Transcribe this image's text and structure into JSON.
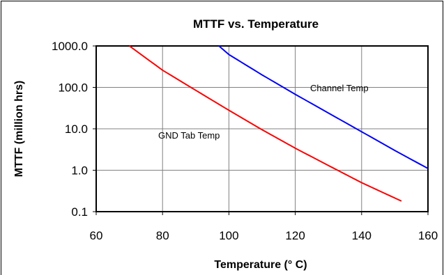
{
  "chart_data": {
    "type": "line",
    "title": "MTTF vs. Temperature",
    "xlabel": "Temperature (° C)",
    "ylabel": "MTTF (million hrs)",
    "xlim": [
      60,
      160
    ],
    "ylim": [
      0.1,
      1000
    ],
    "y_scale": "log",
    "grid": true,
    "legend": "none",
    "x_ticks": [
      "60",
      "80",
      "100",
      "120",
      "140",
      "160"
    ],
    "y_ticks": [
      "0.1",
      "1.0",
      "10.0",
      "100.0",
      "1000.0"
    ],
    "series": [
      {
        "name": "GND Tab Temp",
        "color": "#ff0000",
        "x": [
          70,
          80,
          90,
          100,
          110,
          120,
          130,
          140,
          152
        ],
        "y": [
          1000,
          260,
          85,
          28,
          9.5,
          3.4,
          1.3,
          0.5,
          0.18
        ]
      },
      {
        "name": "Channel Temp",
        "color": "#0000ff",
        "x": [
          97,
          100,
          110,
          120,
          130,
          140,
          150,
          160
        ],
        "y": [
          1000,
          620,
          200,
          68,
          24,
          8.5,
          3.0,
          1.1
        ]
      }
    ],
    "annotations": [
      "Channel Temp",
      "GND Tab Temp"
    ]
  }
}
